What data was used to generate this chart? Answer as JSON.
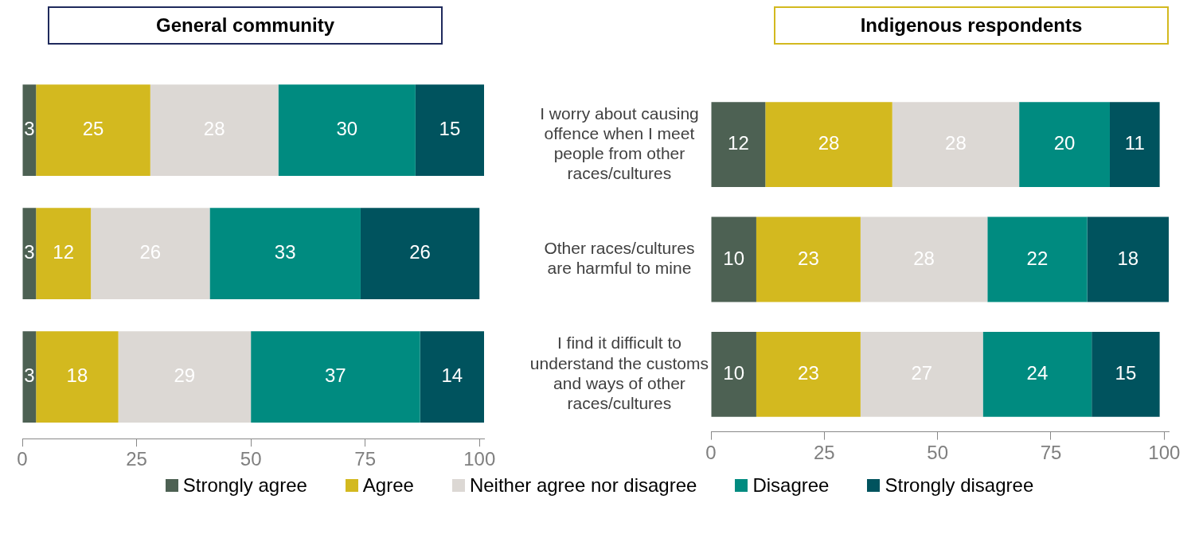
{
  "chart_data": [
    {
      "type": "bar",
      "orientation": "horizontal",
      "stacked": true,
      "title": "General community",
      "categories": [
        null,
        null,
        null
      ],
      "series": [
        {
          "name": "Strongly agree",
          "color": "#4d6153",
          "values": [
            3,
            3,
            3
          ]
        },
        {
          "name": "Agree",
          "color": "#d3b91f",
          "values": [
            25,
            12,
            18
          ]
        },
        {
          "name": "Neither agree nor disagree",
          "color": "#dcd8d4",
          "values": [
            28,
            26,
            29
          ]
        },
        {
          "name": "Disagree",
          "color": "#008b80",
          "values": [
            30,
            33,
            37
          ]
        },
        {
          "name": "Strongly disagree",
          "color": "#00535e",
          "values": [
            15,
            26,
            14
          ]
        }
      ],
      "xlim": [
        0,
        101
      ],
      "xticks": [
        0,
        25,
        50,
        75,
        100
      ],
      "tick_labels": "x",
      "grid": false,
      "data_labels": true,
      "legend": "bottom"
    },
    {
      "type": "bar",
      "orientation": "horizontal",
      "stacked": true,
      "title": "Indigenous respondents",
      "categories": [
        "I worry about causing offence when I meet people from other races/cultures",
        "Other races/cultures are harmful to mine",
        "I find it difficult to understand the customs and ways of other races/cultures"
      ],
      "series": [
        {
          "color": "#4d6153",
          "values": [
            12,
            10,
            10
          ]
        },
        {
          "color": "#d3b91f",
          "values": [
            28,
            23,
            23
          ]
        },
        {
          "color": "#dcd8d4",
          "values": [
            28,
            28,
            27
          ]
        },
        {
          "color": "#008b80",
          "values": [
            20,
            22,
            24
          ]
        },
        {
          "color": "#00535e",
          "values": [
            11,
            18,
            15
          ]
        }
      ],
      "xlim": [
        0,
        101
      ],
      "xticks": [
        0,
        25,
        50,
        75,
        100
      ],
      "grid": false,
      "data_labels": true
    }
  ]
}
